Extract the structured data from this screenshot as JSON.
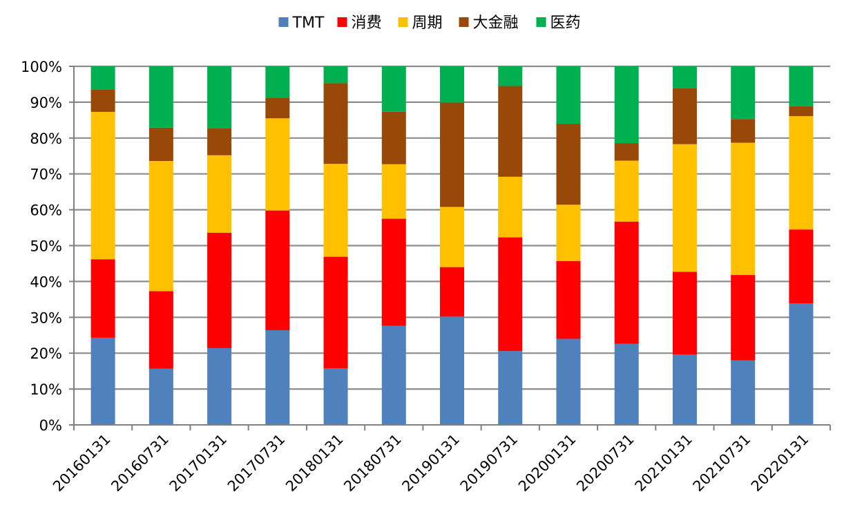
{
  "chart_data": {
    "type": "bar",
    "stacked": true,
    "title": "",
    "xlabel": "",
    "ylabel": "",
    "ylim": [
      0,
      100
    ],
    "y_ticks": [
      "0%",
      "10%",
      "20%",
      "30%",
      "40%",
      "50%",
      "60%",
      "70%",
      "80%",
      "90%",
      "100%"
    ],
    "grid": true,
    "legend_position": "top-center",
    "categories": [
      "20160131",
      "20160731",
      "20170131",
      "20170731",
      "20180131",
      "20180731",
      "20190131",
      "20190731",
      "20200131",
      "20200731",
      "20210131",
      "20210731",
      "20220131"
    ],
    "series": [
      {
        "name": "TMT",
        "color": "#4F81BD",
        "values": [
          24.3,
          15.7,
          21.4,
          26.4,
          15.8,
          27.6,
          30.2,
          20.6,
          24.0,
          22.6,
          19.6,
          18.0,
          33.9
        ]
      },
      {
        "name": "消费",
        "color": "#FF0000",
        "values": [
          21.9,
          21.6,
          32.2,
          33.4,
          31.1,
          29.9,
          13.8,
          31.7,
          21.7,
          34.1,
          23.1,
          23.8,
          20.6
        ]
      },
      {
        "name": "周期",
        "color": "#FFC000",
        "values": [
          41.1,
          36.3,
          21.6,
          25.7,
          25.9,
          15.2,
          16.8,
          16.9,
          15.7,
          17.0,
          35.6,
          36.9,
          31.6
        ]
      },
      {
        "name": "大金融",
        "color": "#984807",
        "values": [
          6.3,
          9.3,
          7.6,
          5.8,
          22.5,
          14.6,
          29.1,
          25.3,
          22.6,
          4.9,
          15.6,
          6.6,
          2.8
        ]
      },
      {
        "name": "医药",
        "color": "#00B050",
        "values": [
          6.4,
          17.1,
          17.2,
          8.7,
          4.7,
          12.7,
          10.1,
          5.5,
          16.0,
          21.4,
          6.1,
          14.7,
          11.1
        ]
      }
    ]
  }
}
